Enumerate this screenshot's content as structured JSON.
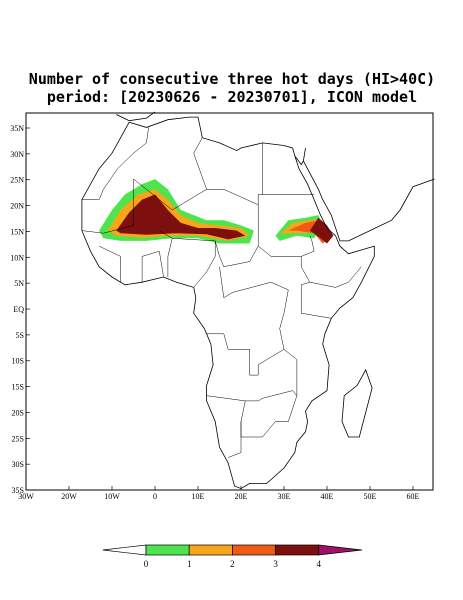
{
  "title": [
    "Number of consecutive three hot days (HI>40C)",
    "period: [20230626 - 20230701], ICON model"
  ],
  "map": {
    "lat_labels": [
      "35N",
      "30N",
      "25N",
      "20N",
      "15N",
      "10N",
      "5N",
      "EQ",
      "5S",
      "10S",
      "15S",
      "20S",
      "25S",
      "30S",
      "35S"
    ],
    "lon_labels": [
      "30W",
      "20W",
      "10W",
      "0",
      "10E",
      "20E",
      "30E",
      "40E",
      "50E",
      "60E"
    ]
  },
  "colorbar": {
    "ticks": [
      0,
      1,
      2,
      3,
      4
    ],
    "colors": [
      "#ffffff",
      "#4ee44e",
      "#f7a51b",
      "#f05a14",
      "#7d0f0f",
      "#a0106a"
    ]
  }
}
